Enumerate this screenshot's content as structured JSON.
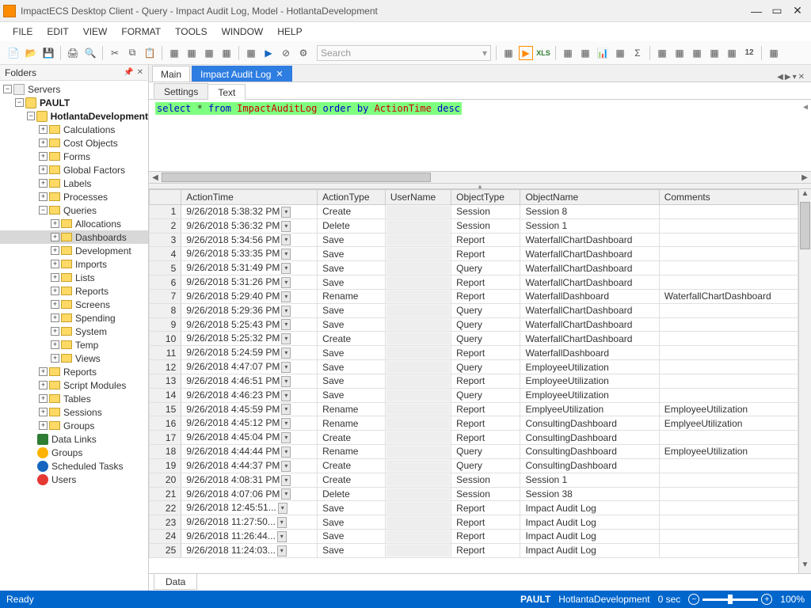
{
  "window": {
    "title": "ImpactECS Desktop Client - Query - Impact Audit Log, Model - HotlantaDevelopment"
  },
  "menubar": [
    "FILE",
    "EDIT",
    "VIEW",
    "FORMAT",
    "TOOLS",
    "WINDOW",
    "HELP"
  ],
  "search_placeholder": "Search",
  "sidebar": {
    "title": "Folders",
    "root": "Servers",
    "server": "PAULT",
    "database": "HotlantaDevelopment",
    "db_children": [
      "Calculations",
      "Cost Objects",
      "Forms",
      "Global Factors",
      "Labels",
      "Processes"
    ],
    "queries_label": "Queries",
    "query_children": [
      "Allocations",
      "Dashboards",
      "Development",
      "Imports",
      "Lists",
      "Reports",
      "Screens",
      "Spending",
      "System",
      "Temp",
      "Views"
    ],
    "selected_query": "Dashboards",
    "db_children_after": [
      "Reports",
      "Script Modules",
      "Tables",
      "Sessions",
      "Groups"
    ],
    "server_children_after": [
      {
        "icon": "link",
        "label": "Data Links"
      },
      {
        "icon": "grp",
        "label": "Groups"
      },
      {
        "icon": "sch",
        "label": "Scheduled Tasks"
      },
      {
        "icon": "usr",
        "label": "Users"
      }
    ]
  },
  "tabs": {
    "main": "Main",
    "active": "Impact Audit Log"
  },
  "inner_tabs": {
    "settings": "Settings",
    "text": "Text"
  },
  "sql": {
    "raw": "select * from ImpactAuditLog order by ActionTime desc",
    "kw1": "select",
    "star": " * ",
    "kw2": "from",
    "tbl": " ImpactAuditLog ",
    "kw3": "order by",
    "col": " ActionTime ",
    "kw4": "desc"
  },
  "grid": {
    "columns": [
      "ActionTime",
      "ActionType",
      "UserName",
      "ObjectType",
      "ObjectName",
      "Comments"
    ],
    "col_widths": [
      "130px",
      "72px",
      "62px",
      "72px",
      "132px",
      "132px"
    ],
    "rows": [
      [
        "9/26/2018 5:38:32 PM",
        "Create",
        "",
        "Session",
        "Session 8",
        ""
      ],
      [
        "9/26/2018 5:36:32 PM",
        "Delete",
        "",
        "Session",
        "Session 1",
        ""
      ],
      [
        "9/26/2018 5:34:56 PM",
        "Save",
        "",
        "Report",
        "WaterfallChartDashboard",
        ""
      ],
      [
        "9/26/2018 5:33:35 PM",
        "Save",
        "",
        "Report",
        "WaterfallChartDashboard",
        ""
      ],
      [
        "9/26/2018 5:31:49 PM",
        "Save",
        "",
        "Query",
        "WaterfallChartDashboard",
        ""
      ],
      [
        "9/26/2018 5:31:26 PM",
        "Save",
        "",
        "Report",
        "WaterfallChartDashboard",
        ""
      ],
      [
        "9/26/2018 5:29:40 PM",
        "Rename",
        "",
        "Report",
        "WaterfallDashboard",
        "WaterfallChartDashboard"
      ],
      [
        "9/26/2018 5:29:36 PM",
        "Save",
        "",
        "Query",
        "WaterfallChartDashboard",
        ""
      ],
      [
        "9/26/2018 5:25:43 PM",
        "Save",
        "",
        "Query",
        "WaterfallChartDashboard",
        ""
      ],
      [
        "9/26/2018 5:25:32 PM",
        "Create",
        "",
        "Query",
        "WaterfallChartDashboard",
        ""
      ],
      [
        "9/26/2018 5:24:59 PM",
        "Save",
        "",
        "Report",
        "WaterfallDashboard",
        ""
      ],
      [
        "9/26/2018 4:47:07 PM",
        "Save",
        "",
        "Query",
        "EmployeeUtilization",
        ""
      ],
      [
        "9/26/2018 4:46:51 PM",
        "Save",
        "",
        "Report",
        "EmployeeUtilization",
        ""
      ],
      [
        "9/26/2018 4:46:23 PM",
        "Save",
        "",
        "Query",
        "EmployeeUtilization",
        ""
      ],
      [
        "9/26/2018 4:45:59 PM",
        "Rename",
        "",
        "Report",
        "EmplyeeUtilization",
        "EmployeeUtilization"
      ],
      [
        "9/26/2018 4:45:12 PM",
        "Rename",
        "",
        "Report",
        "ConsultingDashboard",
        "EmplyeeUtilization"
      ],
      [
        "9/26/2018 4:45:04 PM",
        "Create",
        "",
        "Report",
        "ConsultingDashboard",
        ""
      ],
      [
        "9/26/2018 4:44:44 PM",
        "Rename",
        "",
        "Query",
        "ConsultingDashboard",
        "EmployeeUtilization"
      ],
      [
        "9/26/2018 4:44:37 PM",
        "Create",
        "",
        "Query",
        "ConsultingDashboard",
        ""
      ],
      [
        "9/26/2018 4:08:31 PM",
        "Create",
        "",
        "Session",
        "Session 1",
        ""
      ],
      [
        "9/26/2018 4:07:06 PM",
        "Delete",
        "",
        "Session",
        "Session 38",
        ""
      ],
      [
        "9/26/2018 12:45:51...",
        "Save",
        "",
        "Report",
        "Impact Audit Log",
        ""
      ],
      [
        "9/26/2018 11:27:50...",
        "Save",
        "",
        "Report",
        "Impact Audit Log",
        ""
      ],
      [
        "9/26/2018 11:26:44...",
        "Save",
        "",
        "Report",
        "Impact Audit Log",
        ""
      ],
      [
        "9/26/2018 11:24:03...",
        "Save",
        "",
        "Report",
        "Impact Audit Log",
        ""
      ]
    ]
  },
  "bottom_tab": "Data",
  "status": {
    "left": "Ready",
    "server": "PAULT",
    "db": "HotlantaDevelopment",
    "time": "0 sec",
    "zoom": "100%"
  }
}
